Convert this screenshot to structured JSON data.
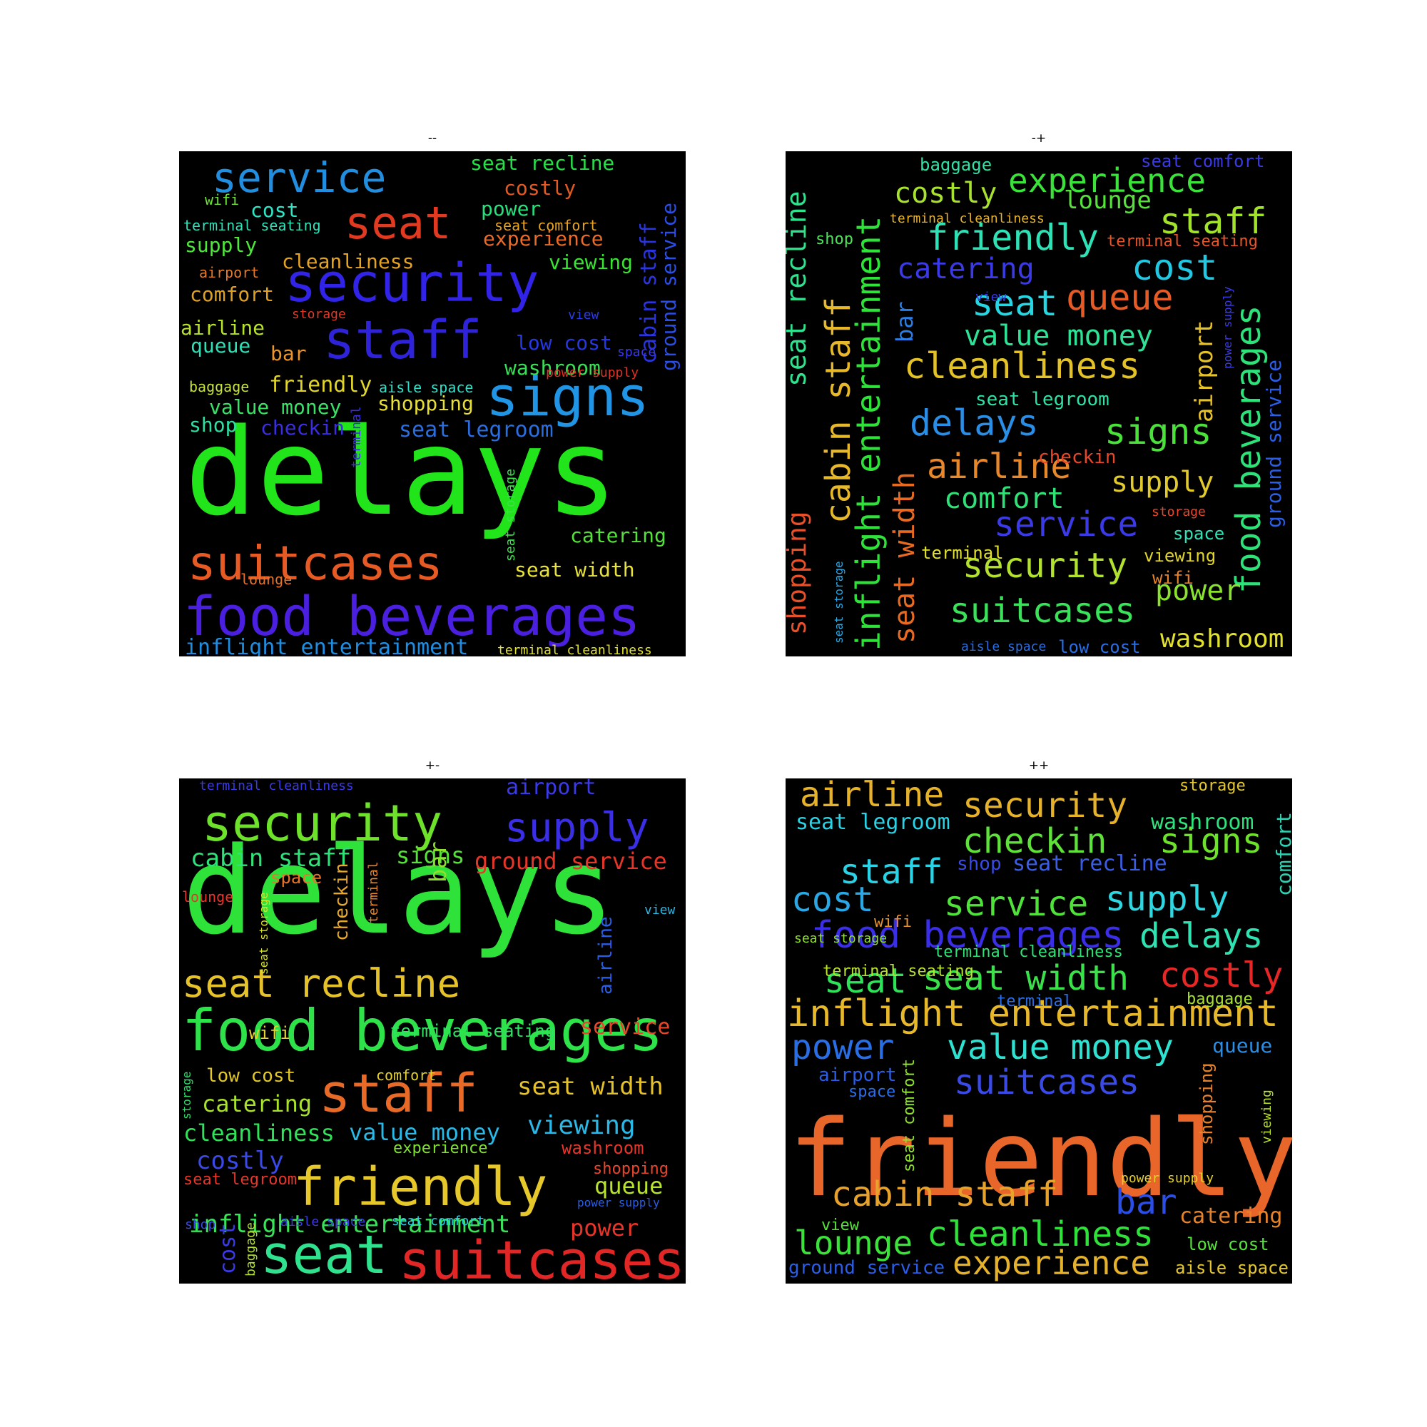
{
  "chart_data": [
    {
      "type": "wordcloud",
      "title": "--",
      "words": [
        {
          "text": "delays",
          "color": "#22e41a"
        },
        {
          "text": "food beverages",
          "color": "#4a1fe0"
        },
        {
          "text": "suitcases",
          "color": "#e85a23"
        },
        {
          "text": "signs",
          "color": "#2195e5"
        },
        {
          "text": "security",
          "color": "#3123e8"
        },
        {
          "text": "staff",
          "color": "#2e23d9"
        },
        {
          "text": "seat",
          "color": "#e23a21"
        },
        {
          "text": "service",
          "color": "#228ee0"
        },
        {
          "text": "inflight entertainment",
          "color": "#1f8de0"
        },
        {
          "text": "seat recline",
          "color": "#28df4a"
        },
        {
          "text": "costly",
          "color": "#e45a22"
        },
        {
          "text": "experience",
          "color": "#ea6a26"
        },
        {
          "text": "power",
          "color": "#26e07e"
        },
        {
          "text": "viewing",
          "color": "#3ae433"
        },
        {
          "text": "cost",
          "color": "#2ee5c5"
        },
        {
          "text": "supply",
          "color": "#4ee83a"
        },
        {
          "text": "cleanliness",
          "color": "#e3a325"
        },
        {
          "text": "comfort",
          "color": "#e0a020"
        },
        {
          "text": "airline",
          "color": "#b7e32a"
        },
        {
          "text": "queue",
          "color": "#2ee0b5"
        },
        {
          "text": "bar",
          "color": "#e8952d"
        },
        {
          "text": "friendly",
          "color": "#e1d529"
        },
        {
          "text": "shopping",
          "color": "#e7df36"
        },
        {
          "text": "value money",
          "color": "#38e266"
        },
        {
          "text": "shop",
          "color": "#2edfa4"
        },
        {
          "text": "checkin",
          "color": "#3b2ee0"
        },
        {
          "text": "seat legroom",
          "color": "#2a6ee0"
        },
        {
          "text": "low cost",
          "color": "#2538e2"
        },
        {
          "text": "washroom",
          "color": "#38e055"
        },
        {
          "text": "catering",
          "color": "#56e03b"
        },
        {
          "text": "seat width",
          "color": "#e8e23a"
        },
        {
          "text": "cabin staff",
          "color": "#2a34e0"
        },
        {
          "text": "ground service",
          "color": "#2a4ee6"
        },
        {
          "text": "terminal seating",
          "color": "#32e0b8"
        },
        {
          "text": "seat comfort",
          "color": "#e9a41f"
        },
        {
          "text": "wifi",
          "color": "#6ee43a"
        },
        {
          "text": "airport",
          "color": "#e4792a"
        },
        {
          "text": "storage",
          "color": "#e23a2a"
        },
        {
          "text": "view",
          "color": "#2a3ce6"
        },
        {
          "text": "space",
          "color": "#3a3ae6"
        },
        {
          "text": "power supply",
          "color": "#e03224"
        },
        {
          "text": "aisle space",
          "color": "#2ee0c9"
        },
        {
          "text": "baggage",
          "color": "#c8e23c"
        },
        {
          "text": "terminal",
          "color": "#3a2ee0"
        },
        {
          "text": "seat storage",
          "color": "#3ae24a"
        },
        {
          "text": "lounge",
          "color": "#e4732c"
        },
        {
          "text": "terminal cleanliness",
          "color": "#e2e22e"
        }
      ]
    },
    {
      "type": "wordcloud",
      "title": "-+",
      "words": [
        {
          "text": "inflight entertainment",
          "color": "#2ee23a"
        },
        {
          "text": "food beverages",
          "color": "#2ee27a"
        },
        {
          "text": "cabin staff",
          "color": "#e6b82a"
        },
        {
          "text": "seat recline",
          "color": "#2ee28e"
        },
        {
          "text": "seat width",
          "color": "#e86a22"
        },
        {
          "text": "shopping",
          "color": "#e8502a"
        },
        {
          "text": "experience",
          "color": "#3ae23a"
        },
        {
          "text": "friendly",
          "color": "#2ee2b8"
        },
        {
          "text": "costly",
          "color": "#a8e22e"
        },
        {
          "text": "staff",
          "color": "#a2e22a"
        },
        {
          "text": "cleanliness",
          "color": "#e2c226"
        },
        {
          "text": "cost",
          "color": "#22c7e2"
        },
        {
          "text": "queue",
          "color": "#e65a26"
        },
        {
          "text": "seat",
          "color": "#26d6e2"
        },
        {
          "text": "catering",
          "color": "#3a3ae6"
        },
        {
          "text": "value money",
          "color": "#2ee296"
        },
        {
          "text": "delays",
          "color": "#2a8ee6"
        },
        {
          "text": "signs",
          "color": "#4ae23a"
        },
        {
          "text": "airline",
          "color": "#e8882a"
        },
        {
          "text": "comfort",
          "color": "#2ee278"
        },
        {
          "text": "supply",
          "color": "#e2ca2a"
        },
        {
          "text": "service",
          "color": "#3a3ae6"
        },
        {
          "text": "security",
          "color": "#b2e22e"
        },
        {
          "text": "suitcases",
          "color": "#3ae25a"
        },
        {
          "text": "power",
          "color": "#8ae22e"
        },
        {
          "text": "washroom",
          "color": "#e2e22e"
        },
        {
          "text": "airport",
          "color": "#e6c22a"
        },
        {
          "text": "lounge",
          "color": "#56e23a"
        },
        {
          "text": "bar",
          "color": "#2a7ee6"
        },
        {
          "text": "ground service",
          "color": "#2a5ee6"
        },
        {
          "text": "baggage",
          "color": "#2ee2a8"
        },
        {
          "text": "seat comfort",
          "color": "#3a3ae6"
        },
        {
          "text": "terminal cleanliness",
          "color": "#e8b22a"
        },
        {
          "text": "terminal seating",
          "color": "#e8552a"
        },
        {
          "text": "shop",
          "color": "#4ee25a"
        },
        {
          "text": "seat legroom",
          "color": "#2ee2a4"
        },
        {
          "text": "checkin",
          "color": "#e8452a"
        },
        {
          "text": "storage",
          "color": "#e8452a"
        },
        {
          "text": "space",
          "color": "#2ee2b8"
        },
        {
          "text": "viewing",
          "color": "#e2d62a"
        },
        {
          "text": "wifi",
          "color": "#e8822a"
        },
        {
          "text": "terminal",
          "color": "#e2e22e"
        },
        {
          "text": "low cost",
          "color": "#2a6ee6"
        },
        {
          "text": "aisle space",
          "color": "#2a6ee6"
        },
        {
          "text": "view",
          "color": "#3a3ae6"
        },
        {
          "text": "power supply",
          "color": "#3a3ae6"
        },
        {
          "text": "seat storage",
          "color": "#2aa8e6"
        }
      ]
    },
    {
      "type": "wordcloud",
      "title": "+-",
      "words": [
        {
          "text": "delays",
          "color": "#2ee23a"
        },
        {
          "text": "food beverages",
          "color": "#2ee24a"
        },
        {
          "text": "friendly",
          "color": "#e6c82a"
        },
        {
          "text": "suitcases",
          "color": "#e22626"
        },
        {
          "text": "seat",
          "color": "#2ee28e"
        },
        {
          "text": "staff",
          "color": "#e86a26"
        },
        {
          "text": "security",
          "color": "#6ee22a"
        },
        {
          "text": "seat recline",
          "color": "#e6c22a"
        },
        {
          "text": "supply",
          "color": "#3a2ee6"
        },
        {
          "text": "inflight entertainment",
          "color": "#3ae25a"
        },
        {
          "text": "cleanliness",
          "color": "#2ee25a"
        },
        {
          "text": "value money",
          "color": "#2ab8e6"
        },
        {
          "text": "viewing",
          "color": "#2ab8e6"
        },
        {
          "text": "seat width",
          "color": "#e6c22a"
        },
        {
          "text": "catering",
          "color": "#a8e22e"
        },
        {
          "text": "costly",
          "color": "#3a4ae6"
        },
        {
          "text": "cabin staff",
          "color": "#2ee278"
        },
        {
          "text": "ground service",
          "color": "#e8352a"
        },
        {
          "text": "service",
          "color": "#e8452a"
        },
        {
          "text": "queue",
          "color": "#b8e22e"
        },
        {
          "text": "power",
          "color": "#e8352a"
        },
        {
          "text": "airport",
          "color": "#3a3ae6"
        },
        {
          "text": "signs",
          "color": "#56e23a"
        },
        {
          "text": "terminal seating",
          "color": "#2ee262"
        },
        {
          "text": "low cost",
          "color": "#e2c82a"
        },
        {
          "text": "washroom",
          "color": "#e8352a"
        },
        {
          "text": "shopping",
          "color": "#e8452a"
        },
        {
          "text": "seat legroom",
          "color": "#e8352a"
        },
        {
          "text": "bar",
          "color": "#8ee22e"
        },
        {
          "text": "checkin",
          "color": "#e8a82a"
        },
        {
          "text": "airline",
          "color": "#2a5ee6"
        },
        {
          "text": "cost",
          "color": "#3a3ae6"
        },
        {
          "text": "space",
          "color": "#e8752a"
        },
        {
          "text": "wifi",
          "color": "#e6d22a"
        },
        {
          "text": "experience",
          "color": "#7ee22e"
        },
        {
          "text": "comfort",
          "color": "#e6d22a"
        },
        {
          "text": "lounge",
          "color": "#e8352a"
        },
        {
          "text": "view",
          "color": "#2ab8e6"
        },
        {
          "text": "terminal cleanliness",
          "color": "#3a3ae6"
        },
        {
          "text": "terminal",
          "color": "#e8852a"
        },
        {
          "text": "seat storage",
          "color": "#d8e22e"
        },
        {
          "text": "storage",
          "color": "#2ee26e"
        },
        {
          "text": "shop",
          "color": "#3a4ae6"
        },
        {
          "text": "baggage",
          "color": "#b2e22e"
        },
        {
          "text": "aisle space",
          "color": "#3a3ae6"
        },
        {
          "text": "seat comfort",
          "color": "#2ad2e6"
        },
        {
          "text": "power supply",
          "color": "#2a5ee6"
        }
      ]
    },
    {
      "type": "wordcloud",
      "title": "++",
      "words": [
        {
          "text": "friendly",
          "color": "#e8662a"
        },
        {
          "text": "inflight entertainment",
          "color": "#e6b82a"
        },
        {
          "text": "food beverages",
          "color": "#3a2ee6"
        },
        {
          "text": "checkin",
          "color": "#5ee23a"
        },
        {
          "text": "signs",
          "color": "#6ee22a"
        },
        {
          "text": "security",
          "color": "#e6b22a"
        },
        {
          "text": "airline",
          "color": "#e6b22a"
        },
        {
          "text": "staff",
          "color": "#2ad2e6"
        },
        {
          "text": "service",
          "color": "#4ee23a"
        },
        {
          "text": "supply",
          "color": "#2ed8e2"
        },
        {
          "text": "cost",
          "color": "#2aa8e6"
        },
        {
          "text": "delays",
          "color": "#2ee2b2"
        },
        {
          "text": "seat width",
          "color": "#3ae24a"
        },
        {
          "text": "seat",
          "color": "#2ee25a"
        },
        {
          "text": "costly",
          "color": "#e82626"
        },
        {
          "text": "value money",
          "color": "#2ee2d2"
        },
        {
          "text": "power",
          "color": "#2a6ee6"
        },
        {
          "text": "suitcases",
          "color": "#3a4ae6"
        },
        {
          "text": "cabin staff",
          "color": "#e6a22a"
        },
        {
          "text": "bar",
          "color": "#2a4ee6"
        },
        {
          "text": "cleanliness",
          "color": "#2ee23a"
        },
        {
          "text": "lounge",
          "color": "#3ae23a"
        },
        {
          "text": "experience",
          "color": "#e6b22a"
        },
        {
          "text": "catering",
          "color": "#e8822a"
        },
        {
          "text": "seat legroom",
          "color": "#2ad2e6"
        },
        {
          "text": "washroom",
          "color": "#2ee27e"
        },
        {
          "text": "seat recline",
          "color": "#3a5ee6"
        },
        {
          "text": "shop",
          "color": "#3a4ae6"
        },
        {
          "text": "storage",
          "color": "#e6c82a"
        },
        {
          "text": "comfort",
          "color": "#2ed2b2"
        },
        {
          "text": "wifi",
          "color": "#e8922a"
        },
        {
          "text": "seat storage",
          "color": "#8ee22e"
        },
        {
          "text": "terminal cleanliness",
          "color": "#2ee278"
        },
        {
          "text": "terminal seating",
          "color": "#b8e22e"
        },
        {
          "text": "terminal",
          "color": "#2a6ee6"
        },
        {
          "text": "baggage",
          "color": "#a8e22e"
        },
        {
          "text": "queue",
          "color": "#2a8ee6"
        },
        {
          "text": "airport",
          "color": "#2a5ee6"
        },
        {
          "text": "space",
          "color": "#2a6ee6"
        },
        {
          "text": "seat comfort",
          "color": "#8ee22e"
        },
        {
          "text": "shopping",
          "color": "#e8822a"
        },
        {
          "text": "viewing",
          "color": "#b8e22e"
        },
        {
          "text": "power supply",
          "color": "#e6d22a"
        },
        {
          "text": "view",
          "color": "#56e23a"
        },
        {
          "text": "low cost",
          "color": "#56e23a"
        },
        {
          "text": "ground service",
          "color": "#2a5ee6"
        },
        {
          "text": "aisle space",
          "color": "#e6c82a"
        }
      ]
    }
  ]
}
